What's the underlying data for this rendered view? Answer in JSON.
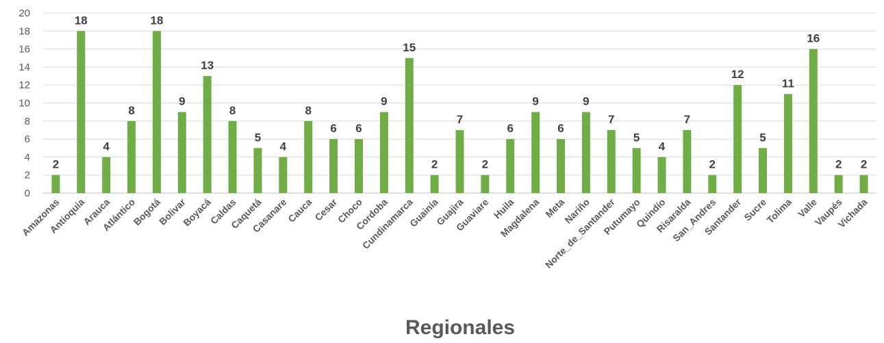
{
  "chart_data": {
    "type": "bar",
    "xlabel": "Regionales",
    "ylabel": "",
    "ylim": [
      0,
      20
    ],
    "yticks": [
      0,
      2,
      4,
      6,
      8,
      10,
      12,
      14,
      16,
      18,
      20
    ],
    "grid": true,
    "bar_color": "#70ad47",
    "categories": [
      "Amazonas",
      "Antioquia",
      "Arauca",
      "Atlántico",
      "Bogotá",
      "Bolivar",
      "Boyacá",
      "Caldas",
      "Caquetá",
      "Casanare",
      "Cauca",
      "Cesar",
      "Choco",
      "Cordoba",
      "Cundinamarca",
      "Guainía",
      "Guajira",
      "Guaviare",
      "Huila",
      "Magdalena",
      "Meta",
      "Nariño",
      "Norte_de_Santander",
      "Putumayo",
      "Quindío",
      "Risaralda",
      "San_Andres",
      "Santander",
      "Sucre",
      "Tolima",
      "Valle",
      "Vaupés",
      "Vichada"
    ],
    "values": [
      2,
      18,
      4,
      8,
      18,
      9,
      13,
      8,
      5,
      4,
      8,
      6,
      6,
      9,
      15,
      2,
      7,
      2,
      6,
      9,
      6,
      9,
      7,
      5,
      4,
      7,
      2,
      12,
      5,
      11,
      16,
      2,
      2
    ]
  }
}
